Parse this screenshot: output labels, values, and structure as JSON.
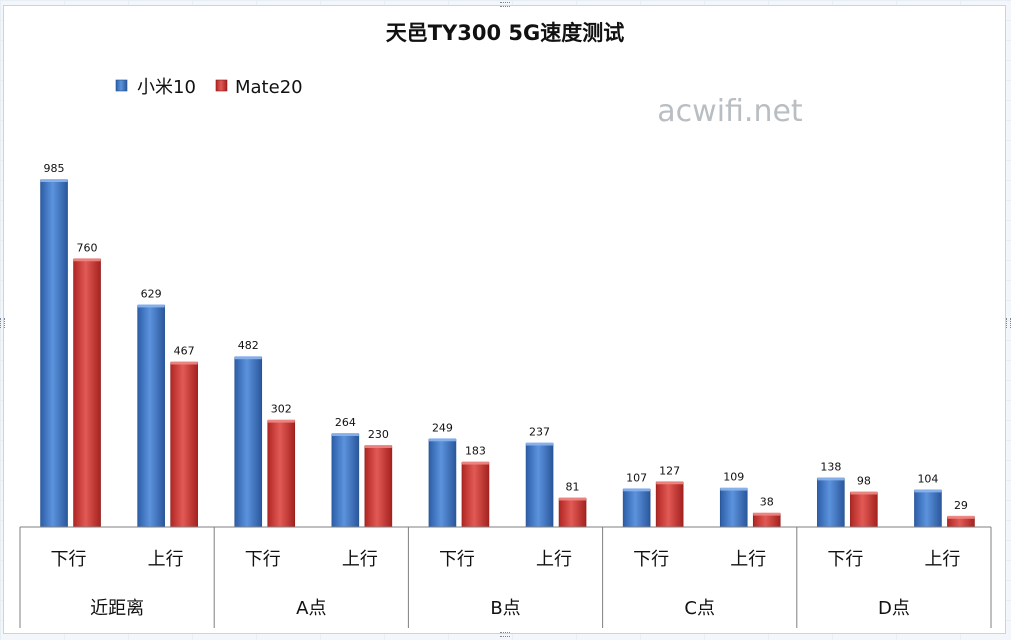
{
  "chart_data": {
    "type": "bar",
    "title": "天邑TY300 5G速度测试",
    "groups": [
      "近距离",
      "A点",
      "B点",
      "C点",
      "D点"
    ],
    "subcategories": [
      "下行",
      "上行"
    ],
    "categories": [
      "下行",
      "上行",
      "下行",
      "上行",
      "下行",
      "上行",
      "下行",
      "上行",
      "下行",
      "上行"
    ],
    "series": [
      {
        "name": "小米10",
        "color": "#3b73c6",
        "values": [
          985,
          629,
          482,
          264,
          249,
          237,
          107,
          109,
          138,
          104
        ]
      },
      {
        "name": "Mate20",
        "color": "#c9302c",
        "values": [
          760,
          467,
          302,
          230,
          183,
          81,
          127,
          38,
          98,
          29
        ]
      }
    ],
    "ylim": [
      0,
      1000
    ],
    "legend": "top-left",
    "grid": false
  },
  "watermark": "acwifi.net"
}
